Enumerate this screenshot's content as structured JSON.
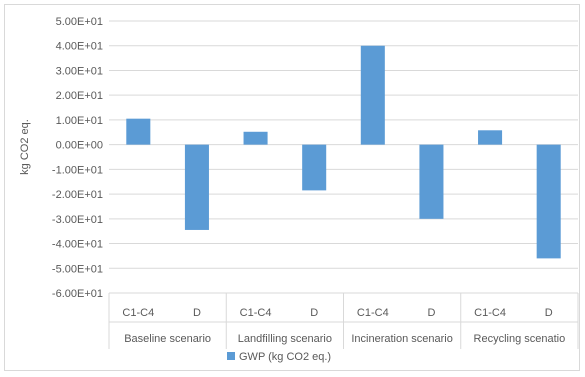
{
  "chart_data": {
    "type": "bar",
    "title": "",
    "ylabel": "kg CO2 eq.",
    "xlabel": "",
    "ylim": [
      -60,
      50
    ],
    "y_ticks": [
      50,
      40,
      30,
      20,
      10,
      0,
      -10,
      -20,
      -30,
      -40,
      -50,
      -60
    ],
    "y_tick_labels": [
      "5.00E+01",
      "4.00E+01",
      "3.00E+01",
      "2.00E+01",
      "1.00E+01",
      "0.00E+00",
      "-1.00E+01",
      "-2.00E+01",
      "-3.00E+01",
      "-4.00E+01",
      "-5.00E+01",
      "-6.00E+01"
    ],
    "groups": [
      {
        "label": "Baseline scenario",
        "categories": [
          "C1-C4",
          "D"
        ]
      },
      {
        "label": "Landfilling scenario",
        "categories": [
          "C1-C4",
          "D"
        ]
      },
      {
        "label": "Incineration scenario",
        "categories": [
          "C1-C4",
          "D"
        ]
      },
      {
        "label": "Recycling scenatio",
        "categories": [
          "C1-C4",
          "D"
        ]
      }
    ],
    "series": [
      {
        "name": "GWP (kg CO2 eq.)",
        "color": "#5b9bd5",
        "values": [
          10.5,
          -34.5,
          5.2,
          -18.5,
          40.0,
          -30.0,
          5.8,
          -46.0
        ]
      }
    ],
    "grid": true,
    "legend_position": "bottom"
  }
}
